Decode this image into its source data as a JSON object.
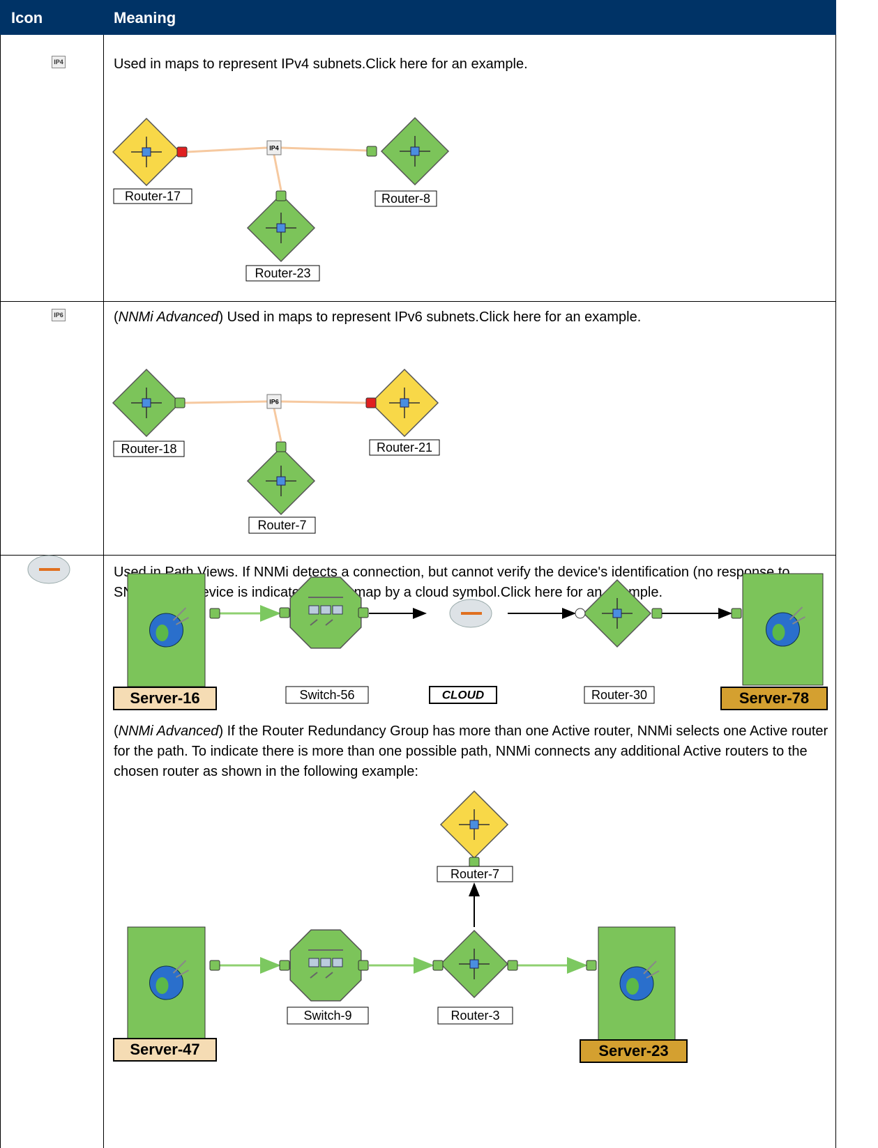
{
  "table": {
    "header": [
      "Icon",
      "Meaning"
    ],
    "rows": [
      {
        "icon": "IP4",
        "text": "Used in maps to represent IPv4 subnets.Click here for an example.",
        "diagram": {
          "nodes": [
            "Router-17",
            "Router-8",
            "Router-23"
          ]
        }
      },
      {
        "icon": "IP6",
        "prefix": "(",
        "qualifier": "NNMi Advanced",
        "text": ") Used in maps to represent IPv6 subnets.Click here for an example.",
        "diagram": {
          "nodes": [
            "Router-18",
            "Router-21",
            "Router-7"
          ]
        }
      },
      {
        "text": "Used in Path Views. If NNMi detects a connection, but cannot verify the device's identification (no response to SNMP), that device is indicated on the map by a cloud symbol.Click here for an example.",
        "diagram": {
          "nodes": [
            "Server-16",
            "Switch-56",
            "CLOUD",
            "Router-30",
            "Server-78"
          ]
        },
        "note_prefix": "(",
        "note_qualifier": "NNMi Advanced",
        "note_text": ") If the Router Redundancy Group has more than one Active router, NNMi selects one Active router for the path. To indicate there is more than one possible path, NNMi connects any additional Active routers to the chosen router as shown in the following example:",
        "diagram2": {
          "nodes": [
            "Router-7",
            "Server-47",
            "Switch-9",
            "Router-3",
            "Server-23"
          ]
        }
      }
    ]
  }
}
